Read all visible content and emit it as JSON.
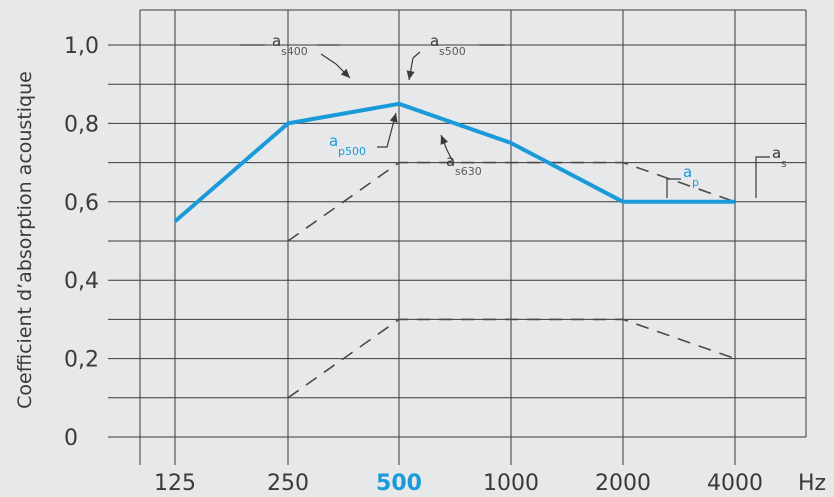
{
  "chart_data": {
    "type": "line",
    "ylabel": "Coefficient d’absorption acoustique",
    "x_unit": "Hz",
    "categories": [
      "125",
      "250",
      "500",
      "1000",
      "2000",
      "4000"
    ],
    "highlight_category": "500",
    "ylim": [
      0,
      1.0
    ],
    "yticks": [
      "0",
      "0,2",
      "0,4",
      "0,6",
      "0,8",
      "1,0"
    ],
    "grid": true,
    "colors": {
      "practical": "#1a9ad9",
      "reference": "#4a4a4a",
      "grid": "#3a3a3a"
    },
    "series": [
      {
        "style": "solid",
        "color": "#1a9ad9",
        "values": [
          0.55,
          0.8,
          0.85,
          0.75,
          0.6,
          0.6
        ]
      },
      {
        "style": "dashed",
        "color": "#4a4a4a",
        "values": [
          null,
          0.5,
          0.7,
          0.7,
          0.7,
          0.6
        ]
      },
      {
        "style": "dashed",
        "color": "#4a4a4a",
        "values": [
          null,
          0.1,
          0.3,
          0.3,
          0.3,
          0.2
        ]
      }
    ],
    "annotations": [
      {
        "id": "as400",
        "main": "a",
        "sub": "s400"
      },
      {
        "id": "as500",
        "main": "a",
        "sub": "s500"
      },
      {
        "id": "ap500",
        "main": "a",
        "sub": "p500"
      },
      {
        "id": "as630",
        "main": "a",
        "sub": "s630"
      },
      {
        "id": "ap",
        "main": "a",
        "sub": "p"
      },
      {
        "id": "as",
        "main": "a",
        "sub": "s"
      }
    ]
  }
}
